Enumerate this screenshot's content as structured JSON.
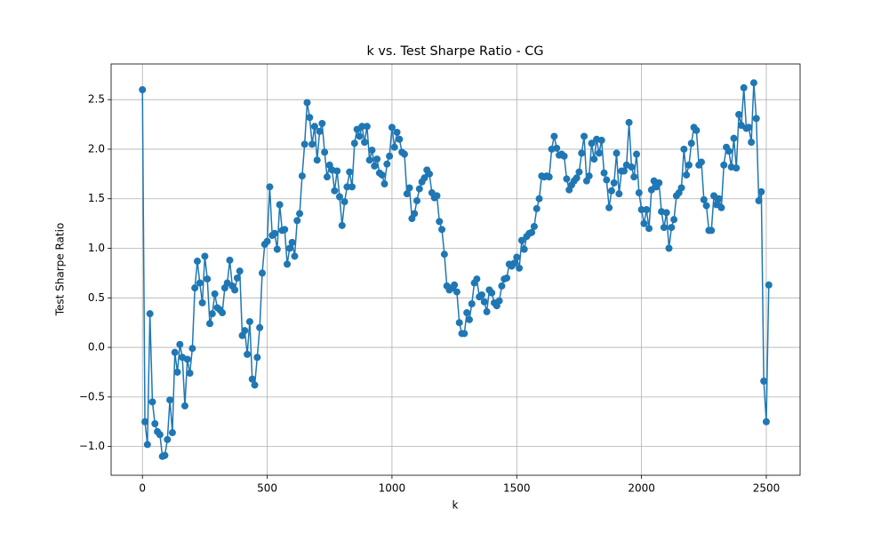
{
  "chart_data": {
    "type": "line",
    "title": "k vs. Test Sharpe Ratio - CG",
    "x_label": "k",
    "y_label": "Test Sharpe Ratio",
    "color": "#1f77b4",
    "grid": true,
    "x": [
      0,
      10,
      20,
      30,
      40,
      50,
      60,
      70,
      80,
      90,
      100,
      110,
      120,
      130,
      140,
      150,
      160,
      170,
      180,
      190,
      200,
      210,
      220,
      230,
      240,
      250,
      260,
      270,
      280,
      290,
      300,
      310,
      320,
      330,
      340,
      350,
      360,
      370,
      380,
      390,
      400,
      410,
      420,
      430,
      440,
      450,
      460,
      470,
      480,
      490,
      500,
      510,
      520,
      530,
      540,
      550,
      560,
      570,
      580,
      590,
      600,
      610,
      620,
      630,
      640,
      650,
      660,
      670,
      680,
      690,
      700,
      710,
      720,
      730,
      740,
      750,
      760,
      770,
      780,
      790,
      800,
      810,
      820,
      830,
      840,
      850,
      860,
      870,
      880,
      890,
      900,
      910,
      920,
      930,
      940,
      950,
      960,
      970,
      980,
      990,
      1000,
      1010,
      1020,
      1030,
      1040,
      1050,
      1060,
      1070,
      1080,
      1090,
      1100,
      1110,
      1120,
      1130,
      1140,
      1150,
      1160,
      1170,
      1180,
      1190,
      1200,
      1210,
      1220,
      1230,
      1240,
      1250,
      1260,
      1270,
      1280,
      1290,
      1300,
      1310,
      1320,
      1330,
      1340,
      1350,
      1360,
      1370,
      1380,
      1390,
      1400,
      1410,
      1420,
      1430,
      1440,
      1450,
      1460,
      1470,
      1480,
      1490,
      1500,
      1510,
      1520,
      1530,
      1540,
      1550,
      1560,
      1570,
      1580,
      1590,
      1600,
      1610,
      1620,
      1630,
      1640,
      1650,
      1660,
      1670,
      1680,
      1690,
      1700,
      1710,
      1720,
      1730,
      1740,
      1750,
      1760,
      1770,
      1780,
      1790,
      1800,
      1810,
      1820,
      1830,
      1840,
      1850,
      1860,
      1870,
      1880,
      1890,
      1900,
      1910,
      1920,
      1930,
      1940,
      1950,
      1960,
      1970,
      1980,
      1990,
      2000,
      2010,
      2020,
      2030,
      2040,
      2050,
      2060,
      2070,
      2080,
      2090,
      2100,
      2110,
      2120,
      2130,
      2140,
      2150,
      2160,
      2170,
      2180,
      2190,
      2200,
      2210,
      2220,
      2230,
      2240,
      2250,
      2260,
      2270,
      2280,
      2290,
      2300,
      2310,
      2320,
      2330,
      2340,
      2350,
      2360,
      2370,
      2380,
      2390,
      2400,
      2410,
      2420,
      2430,
      2440,
      2450,
      2460,
      2470,
      2480,
      2490,
      2500,
      2510
    ],
    "values": [
      2.6,
      -0.75,
      -0.98,
      0.34,
      -0.55,
      -0.77,
      -0.85,
      -0.88,
      -1.1,
      -1.09,
      -0.93,
      -0.53,
      -0.86,
      -0.05,
      -0.25,
      0.03,
      -0.1,
      -0.59,
      -0.12,
      -0.26,
      -0.01,
      0.6,
      0.87,
      0.65,
      0.45,
      0.92,
      0.69,
      0.24,
      0.34,
      0.54,
      0.4,
      0.38,
      0.35,
      0.6,
      0.65,
      0.88,
      0.62,
      0.58,
      0.7,
      0.77,
      0.12,
      0.17,
      -0.07,
      0.26,
      -0.32,
      -0.38,
      -0.1,
      0.2,
      0.75,
      1.04,
      1.07,
      1.62,
      1.13,
      1.15,
      0.99,
      1.44,
      1.18,
      1.19,
      0.84,
      1.0,
      1.06,
      0.92,
      1.28,
      1.35,
      1.73,
      2.05,
      2.47,
      2.32,
      2.05,
      2.23,
      1.89,
      2.18,
      2.26,
      1.97,
      1.72,
      1.84,
      1.79,
      1.58,
      1.78,
      1.52,
      1.23,
      1.47,
      1.62,
      1.77,
      1.62,
      2.06,
      2.2,
      2.13,
      2.23,
      2.07,
      2.23,
      1.89,
      1.99,
      1.83,
      1.9,
      1.76,
      1.74,
      1.65,
      1.85,
      1.93,
      2.22,
      2.02,
      2.17,
      2.1,
      1.97,
      1.95,
      1.55,
      1.61,
      1.3,
      1.35,
      1.48,
      1.6,
      1.67,
      1.71,
      1.79,
      1.75,
      1.56,
      1.51,
      1.53,
      1.27,
      1.19,
      0.94,
      0.62,
      0.58,
      0.6,
      0.63,
      0.56,
      0.25,
      0.14,
      0.14,
      0.35,
      0.28,
      0.44,
      0.65,
      0.69,
      0.51,
      0.53,
      0.46,
      0.36,
      0.58,
      0.55,
      0.45,
      0.42,
      0.47,
      0.62,
      0.69,
      0.7,
      0.84,
      0.82,
      0.85,
      0.91,
      0.8,
      1.08,
      0.99,
      1.12,
      1.15,
      1.16,
      1.22,
      1.4,
      1.5,
      1.73,
      1.72,
      1.73,
      1.72,
      2.0,
      2.13,
      2.01,
      1.94,
      1.95,
      1.93,
      1.7,
      1.59,
      1.64,
      1.68,
      1.71,
      1.77,
      1.96,
      2.13,
      1.68,
      1.73,
      2.06,
      1.9,
      2.1,
      1.96,
      2.09,
      1.76,
      1.69,
      1.41,
      1.58,
      1.66,
      1.96,
      1.55,
      1.78,
      1.78,
      1.84,
      2.27,
      1.82,
      1.72,
      1.95,
      1.56,
      1.39,
      1.25,
      1.39,
      1.2,
      1.59,
      1.68,
      1.62,
      1.66,
      1.37,
      1.21,
      1.36,
      1.0,
      1.21,
      1.29,
      1.53,
      1.56,
      1.61,
      2.0,
      1.74,
      1.84,
      2.06,
      2.22,
      2.19,
      1.84,
      1.87,
      1.49,
      1.43,
      1.18,
      1.18,
      1.53,
      1.44,
      1.5,
      1.41,
      1.84,
      2.02,
      1.98,
      1.82,
      2.11,
      1.81,
      2.35,
      2.24,
      2.62,
      2.21,
      2.22,
      2.07,
      2.67,
      2.31,
      1.48,
      1.57,
      -0.34,
      -0.75,
      0.63
    ],
    "xlim": [
      -125.5,
      2635.5
    ],
    "xticks": [
      0,
      500,
      1000,
      1500,
      2000,
      2500
    ],
    "ylim": [
      -1.29,
      2.86
    ],
    "yticks": [
      {
        "value": -1.0,
        "label": "−1.0"
      },
      {
        "value": -0.5,
        "label": "−0.5"
      },
      {
        "value": 0.0,
        "label": "0.0"
      },
      {
        "value": 0.5,
        "label": "0.5"
      },
      {
        "value": 1.0,
        "label": "1.0"
      },
      {
        "value": 1.5,
        "label": "1.5"
      },
      {
        "value": 2.0,
        "label": "2.0"
      },
      {
        "value": 2.5,
        "label": "2.5"
      }
    ]
  }
}
